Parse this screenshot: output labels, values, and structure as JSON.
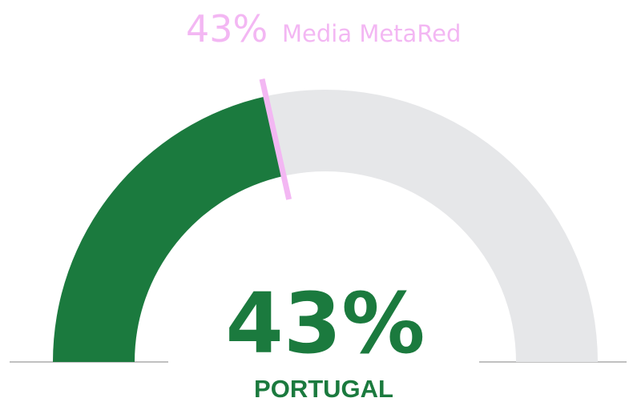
{
  "chart_data": {
    "type": "gauge",
    "value": 43,
    "value_label": "43%",
    "label": "PORTUGAL",
    "range": [
      0,
      100
    ],
    "color": "#1b7a3e",
    "track_color": "#e6e7e9",
    "benchmark": {
      "name": "Media MetaRed",
      "value": 43,
      "value_label": "43%",
      "color": "#f3b7f3"
    }
  }
}
